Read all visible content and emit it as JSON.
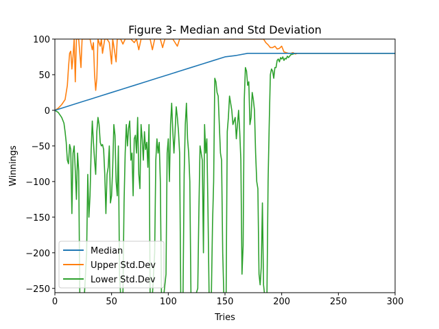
{
  "chart_data": {
    "type": "line",
    "title": "Figure 3- Median and Std Deviation",
    "xlabel": "Tries",
    "ylabel": "Winnings",
    "xlim": [
      0,
      300
    ],
    "ylim": [
      -256,
      100
    ],
    "xticks": [
      0,
      50,
      100,
      150,
      200,
      250,
      300
    ],
    "xtick_labels": [
      "0",
      "50",
      "100",
      "150",
      "200",
      "250",
      "300"
    ],
    "yticks": [
      100,
      50,
      0,
      -50,
      -100,
      -150,
      -200,
      -250
    ],
    "ytick_labels": [
      "100",
      "50",
      "0",
      "−50",
      "−100",
      "−150",
      "−200",
      "−250"
    ],
    "grid": false,
    "legend_position": "lower-left",
    "series": [
      {
        "name": "Median",
        "color": "#1f77b4",
        "points": [
          [
            0,
            0
          ],
          [
            10,
            5
          ],
          [
            20,
            10
          ],
          [
            30,
            15
          ],
          [
            40,
            20
          ],
          [
            50,
            25
          ],
          [
            60,
            30
          ],
          [
            70,
            35
          ],
          [
            80,
            40
          ],
          [
            90,
            45
          ],
          [
            100,
            50
          ],
          [
            110,
            55
          ],
          [
            120,
            60
          ],
          [
            130,
            65
          ],
          [
            140,
            70
          ],
          [
            150,
            75
          ],
          [
            160,
            77
          ],
          [
            170,
            80
          ],
          [
            180,
            80
          ],
          [
            190,
            80
          ],
          [
            200,
            80
          ],
          [
            210,
            80
          ],
          [
            220,
            80
          ],
          [
            250,
            80
          ],
          [
            300,
            80
          ]
        ]
      },
      {
        "name": "Upper Std.Dev",
        "color": "#ff7f0e",
        "points": [
          [
            0,
            0
          ],
          [
            3,
            3
          ],
          [
            6,
            8
          ],
          [
            9,
            15
          ],
          [
            11,
            35
          ],
          [
            12,
            60
          ],
          [
            13,
            80
          ],
          [
            14,
            83
          ],
          [
            15,
            58
          ],
          [
            16,
            75
          ],
          [
            17,
            100
          ],
          [
            18,
            40
          ],
          [
            19,
            100
          ],
          [
            21,
            100
          ],
          [
            22,
            80
          ],
          [
            23,
            60
          ],
          [
            24,
            100
          ],
          [
            27,
            100
          ],
          [
            29,
            100
          ],
          [
            31,
            100
          ],
          [
            33,
            85
          ],
          [
            34,
            95
          ],
          [
            35,
            50
          ],
          [
            36,
            28
          ],
          [
            37,
            45
          ],
          [
            38,
            100
          ],
          [
            40,
            90
          ],
          [
            41,
            100
          ],
          [
            42,
            80
          ],
          [
            44,
            100
          ],
          [
            46,
            100
          ],
          [
            48,
            95
          ],
          [
            50,
            65
          ],
          [
            51,
            100
          ],
          [
            52,
            90
          ],
          [
            54,
            68
          ],
          [
            55,
            100
          ],
          [
            58,
            100
          ],
          [
            60,
            93
          ],
          [
            62,
            100
          ],
          [
            65,
            100
          ],
          [
            67,
            100
          ],
          [
            70,
            95
          ],
          [
            72,
            100
          ],
          [
            74,
            85
          ],
          [
            76,
            100
          ],
          [
            80,
            100
          ],
          [
            84,
            100
          ],
          [
            86,
            85
          ],
          [
            88,
            100
          ],
          [
            90,
            100
          ],
          [
            93,
            100
          ],
          [
            95,
            88
          ],
          [
            97,
            100
          ],
          [
            100,
            100
          ],
          [
            104,
            100
          ],
          [
            108,
            90
          ],
          [
            110,
            100
          ],
          [
            114,
            100
          ],
          [
            118,
            100
          ],
          [
            120,
            100
          ],
          [
            125,
            100
          ],
          [
            130,
            100
          ],
          [
            135,
            100
          ],
          [
            140,
            100
          ],
          [
            145,
            100
          ],
          [
            150,
            100
          ],
          [
            155,
            100
          ],
          [
            160,
            100
          ],
          [
            165,
            100
          ],
          [
            170,
            100
          ],
          [
            175,
            100
          ],
          [
            180,
            100
          ],
          [
            184,
            100
          ],
          [
            186,
            95
          ],
          [
            188,
            92
          ],
          [
            190,
            88
          ],
          [
            192,
            88
          ],
          [
            194,
            90
          ],
          [
            196,
            86
          ],
          [
            198,
            87
          ],
          [
            200,
            90
          ],
          [
            202,
            82
          ],
          [
            204,
            81
          ],
          [
            206,
            80
          ],
          [
            208,
            80
          ],
          [
            210,
            81
          ],
          [
            212,
            79
          ],
          [
            214,
            80
          ],
          [
            220,
            80
          ],
          [
            250,
            80
          ],
          [
            300,
            80
          ]
        ]
      },
      {
        "name": "Lower Std.Dev",
        "color": "#2ca02c",
        "points": [
          [
            0,
            0
          ],
          [
            3,
            -3
          ],
          [
            6,
            -10
          ],
          [
            8,
            -18
          ],
          [
            9,
            -30
          ],
          [
            10,
            -45
          ],
          [
            11,
            -70
          ],
          [
            12,
            -75
          ],
          [
            13,
            -48
          ],
          [
            14,
            -55
          ],
          [
            15,
            -145
          ],
          [
            16,
            -60
          ],
          [
            17,
            -50
          ],
          [
            18,
            -85
          ],
          [
            19,
            -125
          ],
          [
            20,
            -60
          ],
          [
            21,
            -85
          ],
          [
            22,
            -260
          ],
          [
            24,
            -260
          ],
          [
            26,
            -260
          ],
          [
            28,
            -200
          ],
          [
            29,
            -90
          ],
          [
            30,
            -150
          ],
          [
            31,
            -120
          ],
          [
            32,
            -55
          ],
          [
            33,
            -15
          ],
          [
            34,
            -45
          ],
          [
            35,
            -70
          ],
          [
            36,
            -90
          ],
          [
            37,
            -30
          ],
          [
            38,
            -10
          ],
          [
            39,
            -20
          ],
          [
            40,
            -45
          ],
          [
            41,
            -50
          ],
          [
            42,
            -48
          ],
          [
            43,
            -55
          ],
          [
            44,
            -90
          ],
          [
            45,
            -145
          ],
          [
            46,
            -90
          ],
          [
            47,
            -80
          ],
          [
            48,
            -50
          ],
          [
            49,
            -130
          ],
          [
            50,
            -120
          ],
          [
            51,
            -80
          ],
          [
            52,
            -20
          ],
          [
            53,
            -35
          ],
          [
            54,
            -100
          ],
          [
            55,
            -120
          ],
          [
            56,
            -50
          ],
          [
            57,
            -230
          ],
          [
            58,
            -260
          ],
          [
            60,
            -260
          ],
          [
            61,
            -130
          ],
          [
            62,
            -60
          ],
          [
            63,
            -20
          ],
          [
            64,
            -50
          ],
          [
            65,
            -25
          ],
          [
            66,
            -15
          ],
          [
            67,
            -70
          ],
          [
            68,
            -60
          ],
          [
            69,
            -120
          ],
          [
            70,
            -40
          ],
          [
            71,
            -35
          ],
          [
            72,
            -60
          ],
          [
            73,
            -10
          ],
          [
            74,
            -90
          ],
          [
            75,
            -110
          ],
          [
            76,
            -20
          ],
          [
            77,
            -40
          ],
          [
            78,
            -70
          ],
          [
            79,
            -30
          ],
          [
            80,
            -55
          ],
          [
            81,
            -45
          ],
          [
            82,
            -80
          ],
          [
            83,
            -20
          ],
          [
            84,
            -260
          ],
          [
            86,
            -260
          ],
          [
            88,
            -200
          ],
          [
            89,
            -70
          ],
          [
            90,
            -40
          ],
          [
            91,
            -60
          ],
          [
            92,
            -45
          ],
          [
            93,
            -100
          ],
          [
            94,
            -260
          ],
          [
            96,
            -260
          ],
          [
            98,
            -230
          ],
          [
            99,
            -60
          ],
          [
            100,
            -40
          ],
          [
            101,
            -100
          ],
          [
            102,
            -20
          ],
          [
            103,
            10
          ],
          [
            104,
            -30
          ],
          [
            105,
            -60
          ],
          [
            106,
            -30
          ],
          [
            107,
            5
          ],
          [
            108,
            -10
          ],
          [
            109,
            -30
          ],
          [
            110,
            -60
          ],
          [
            111,
            -260
          ],
          [
            113,
            -260
          ],
          [
            114,
            -90
          ],
          [
            115,
            -20
          ],
          [
            116,
            10
          ],
          [
            117,
            -40
          ],
          [
            118,
            -60
          ],
          [
            119,
            -100
          ],
          [
            120,
            -260
          ],
          [
            122,
            -260
          ],
          [
            124,
            -260
          ],
          [
            126,
            -250
          ],
          [
            127,
            -140
          ],
          [
            128,
            -50
          ],
          [
            129,
            -60
          ],
          [
            130,
            -70
          ],
          [
            131,
            -200
          ],
          [
            132,
            -20
          ],
          [
            133,
            -60
          ],
          [
            134,
            -40
          ],
          [
            135,
            -140
          ],
          [
            136,
            -260
          ],
          [
            138,
            -260
          ],
          [
            139,
            -160
          ],
          [
            140,
            -100
          ],
          [
            141,
            45
          ],
          [
            142,
            40
          ],
          [
            143,
            25
          ],
          [
            144,
            20
          ],
          [
            145,
            -20
          ],
          [
            146,
            -60
          ],
          [
            147,
            -70
          ],
          [
            148,
            -200
          ],
          [
            149,
            -260
          ],
          [
            151,
            -260
          ],
          [
            152,
            -30
          ],
          [
            153,
            -10
          ],
          [
            154,
            20
          ],
          [
            155,
            10
          ],
          [
            156,
            0
          ],
          [
            157,
            -20
          ],
          [
            158,
            -15
          ],
          [
            159,
            -10
          ],
          [
            160,
            -40
          ],
          [
            161,
            -20
          ],
          [
            162,
            0
          ],
          [
            163,
            -30
          ],
          [
            164,
            -70
          ],
          [
            165,
            -230
          ],
          [
            166,
            -190
          ],
          [
            167,
            15
          ],
          [
            168,
            60
          ],
          [
            169,
            55
          ],
          [
            170,
            35
          ],
          [
            171,
            40
          ],
          [
            172,
            -20
          ],
          [
            173,
            -10
          ],
          [
            174,
            25
          ],
          [
            175,
            15
          ],
          [
            176,
            0
          ],
          [
            177,
            -60
          ],
          [
            178,
            -100
          ],
          [
            179,
            -110
          ],
          [
            180,
            -230
          ],
          [
            181,
            -245
          ],
          [
            182,
            -220
          ],
          [
            183,
            -130
          ],
          [
            184,
            -245
          ],
          [
            185,
            -260
          ],
          [
            187,
            -260
          ],
          [
            188,
            -100
          ],
          [
            189,
            -20
          ],
          [
            190,
            50
          ],
          [
            191,
            58
          ],
          [
            192,
            55
          ],
          [
            193,
            45
          ],
          [
            194,
            60
          ],
          [
            195,
            60
          ],
          [
            196,
            70
          ],
          [
            197,
            72
          ],
          [
            198,
            68
          ],
          [
            199,
            74
          ],
          [
            200,
            72
          ],
          [
            201,
            75
          ],
          [
            202,
            70
          ],
          [
            203,
            73
          ],
          [
            204,
            72
          ],
          [
            205,
            76
          ],
          [
            206,
            74
          ],
          [
            208,
            78
          ],
          [
            210,
            79
          ],
          [
            212,
            80
          ],
          [
            215,
            80
          ],
          [
            220,
            80
          ],
          [
            250,
            80
          ],
          [
            300,
            80
          ]
        ]
      }
    ]
  }
}
